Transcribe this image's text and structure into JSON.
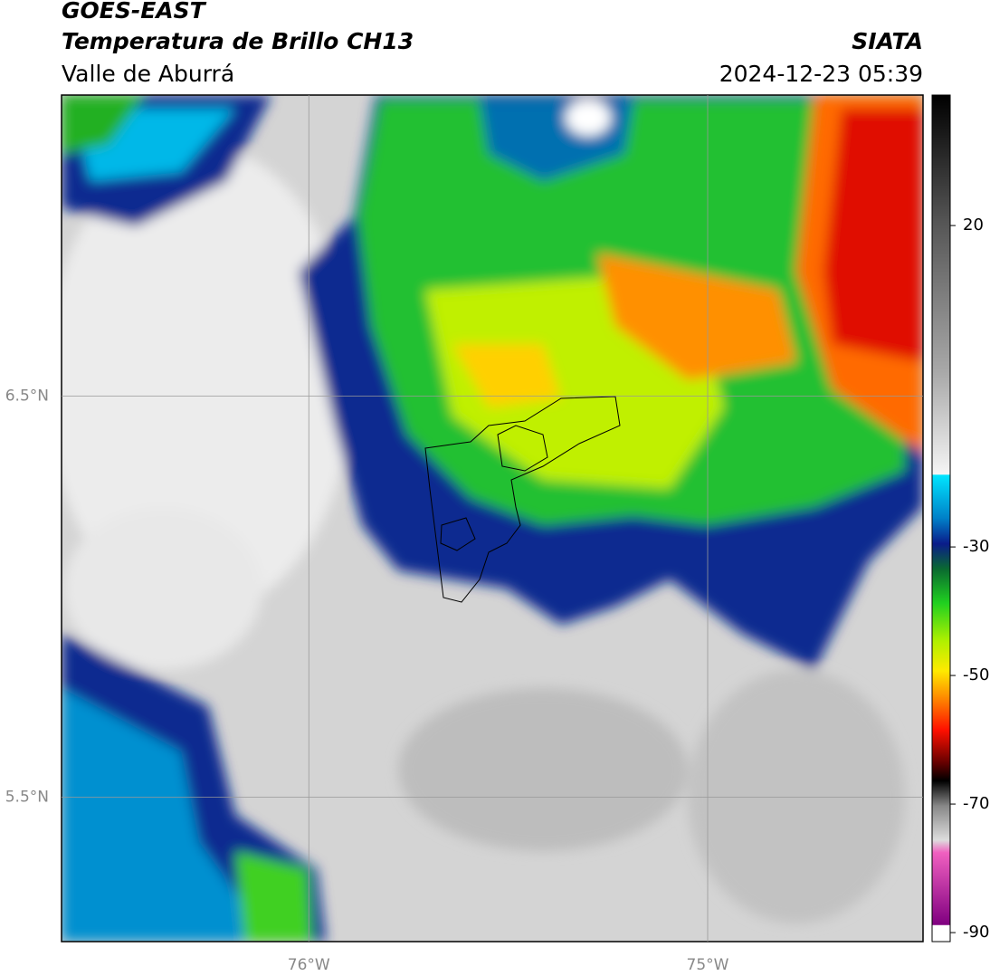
{
  "header": {
    "title": "GOES-EAST",
    "product": "Temperatura de Brillo CH13",
    "region": "Valle de Aburrá",
    "source": "SIATA",
    "datetime": "2024-12-23 05:39"
  },
  "map": {
    "xlim": [
      -76.62,
      -74.46
    ],
    "ylim": [
      5.14,
      7.25
    ],
    "xticks": [
      {
        "value": -76,
        "label": "76°W"
      },
      {
        "value": -75,
        "label": "75°W"
      }
    ],
    "yticks": [
      {
        "value": 6.5,
        "label": "6.5°N"
      },
      {
        "value": 5.5,
        "label": "5.5°N"
      }
    ],
    "grid": true
  },
  "colorbar": {
    "lim": [
      -91.4,
      40.3
    ],
    "ticks": [
      20,
      -30,
      -50,
      -70,
      -90
    ]
  }
}
